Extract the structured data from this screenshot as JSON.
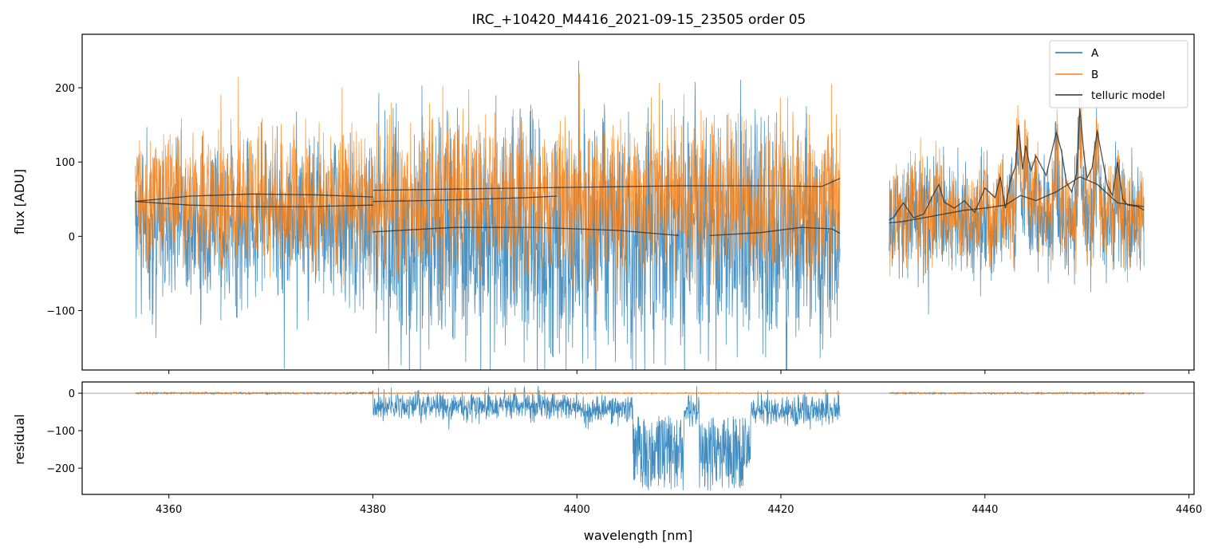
{
  "chart_data": [
    {
      "panel": "top",
      "type": "line",
      "title": "IRC_+10420_M4416_2021-09-15_23505  order 05",
      "xlabel": "",
      "ylabel": "flux [ADU]",
      "xlim": [
        4351.5,
        4460.5
      ],
      "ylim": [
        -180,
        272
      ],
      "xticks": [
        4360,
        4380,
        4400,
        4420,
        4440,
        4460
      ],
      "yticks": [
        -100,
        0,
        100,
        200
      ],
      "ytick_labels": [
        "−100",
        "0",
        "100",
        "200"
      ],
      "legend": {
        "placement": "top-right",
        "entries": [
          "A",
          "B",
          "telluric model"
        ]
      },
      "series": [
        {
          "name": "A",
          "color": "#1f77b4",
          "segments": [
            [
              4356.7,
              4425.8
            ],
            [
              4430.6,
              4455.6
            ]
          ],
          "description": "noisy spectrum, approx. mean 15 with large scatter (±90), deep negative excursions near 4380-4425"
        },
        {
          "name": "B",
          "color": "#ff7f0e",
          "segments": [
            [
              4356.7,
              4425.8
            ],
            [
              4430.6,
              4455.6
            ]
          ],
          "description": "noisy spectrum, approx. mean 50 with scatter (±70), emission peaks near 4443, 4447-4450"
        },
        {
          "name": "telluric model",
          "color": "#333333",
          "curves": [
            {
              "x": [
                4356.7,
                4362,
                4368,
                4374,
                4380
              ],
              "y": [
                47,
                54,
                57,
                56,
                53
              ]
            },
            {
              "x": [
                4356.7,
                4362,
                4368,
                4374,
                4380
              ],
              "y": [
                47,
                42,
                40,
                40,
                42
              ]
            },
            {
              "x": [
                4380,
                4390,
                4400,
                4410,
                4420,
                4424,
                4425.8
              ],
              "y": [
                62,
                64,
                66,
                68,
                68,
                67,
                78
              ]
            },
            {
              "x": [
                4380,
                4385,
                4390,
                4395,
                4398
              ],
              "y": [
                47,
                48,
                50,
                52,
                54
              ]
            },
            {
              "x": [
                4380,
                4388,
                4396,
                4404,
                4410
              ],
              "y": [
                6,
                12,
                12,
                8,
                1
              ]
            },
            {
              "x": [
                4413,
                4418,
                4422,
                4425,
                4425.8
              ],
              "y": [
                1,
                5,
                12,
                10,
                4
              ]
            },
            {
              "x": [
                4430.6,
                4431,
                4432,
                4433,
                4434,
                4435,
                4435.5,
                4436,
                4437,
                4438,
                4439,
                4440,
                4441,
                4441.5,
                4442,
                4442.5,
                4443,
                4443.3,
                4443.7,
                4444,
                4444.5,
                4445,
                4446,
                4447,
                4447.5,
                4448,
                4448.5,
                4449,
                4449.3,
                4449.7,
                4450,
                4450.5,
                4451,
                4451.5,
                4452,
                4452.5,
                4453,
                4453.5,
                4454,
                4455,
                4455.6
              ],
              "y": [
                22,
                25,
                45,
                25,
                30,
                58,
                70,
                46,
                38,
                48,
                32,
                65,
                52,
                80,
                38,
                75,
                95,
                150,
                90,
                122,
                88,
                108,
                82,
                140,
                115,
                72,
                60,
                85,
                172,
                110,
                78,
                92,
                142,
                105,
                68,
                55,
                100,
                50,
                42,
                40,
                35
              ]
            },
            {
              "x": [
                4430.6,
                4432,
                4434,
                4436,
                4438,
                4440,
                4442,
                4443.5,
                4445,
                4447,
                4449.3,
                4451,
                4453,
                4455.6
              ],
              "y": [
                18,
                20,
                25,
                30,
                35,
                38,
                42,
                55,
                48,
                60,
                80,
                70,
                45,
                40
              ]
            }
          ]
        }
      ]
    },
    {
      "panel": "bottom",
      "type": "line",
      "title": "",
      "xlabel": "wavelength [nm]",
      "ylabel": "residual",
      "xlim": [
        4351.5,
        4460.5
      ],
      "ylim": [
        -270,
        30
      ],
      "xticks": [
        4360,
        4380,
        4400,
        4420,
        4440,
        4460
      ],
      "xtick_labels": [
        "4360",
        "4380",
        "4400",
        "4420",
        "4440",
        "4460"
      ],
      "yticks": [
        -200,
        -100,
        0
      ],
      "ytick_labels": [
        "−200",
        "−100",
        "0"
      ],
      "hline": 0,
      "series": [
        {
          "name": "A",
          "color": "#1f77b4",
          "description": "≈0 over 4356.7-4380, negative scatter (-20 to -60) over 4380-4425.8 with deep drops to < -270 near 4406-4410 and 4412-4416; ≈0 over 4430.6-4455.6"
        },
        {
          "name": "B",
          "color": "#ff7f0e",
          "description": "≈0 everywhere data exists"
        }
      ]
    }
  ]
}
